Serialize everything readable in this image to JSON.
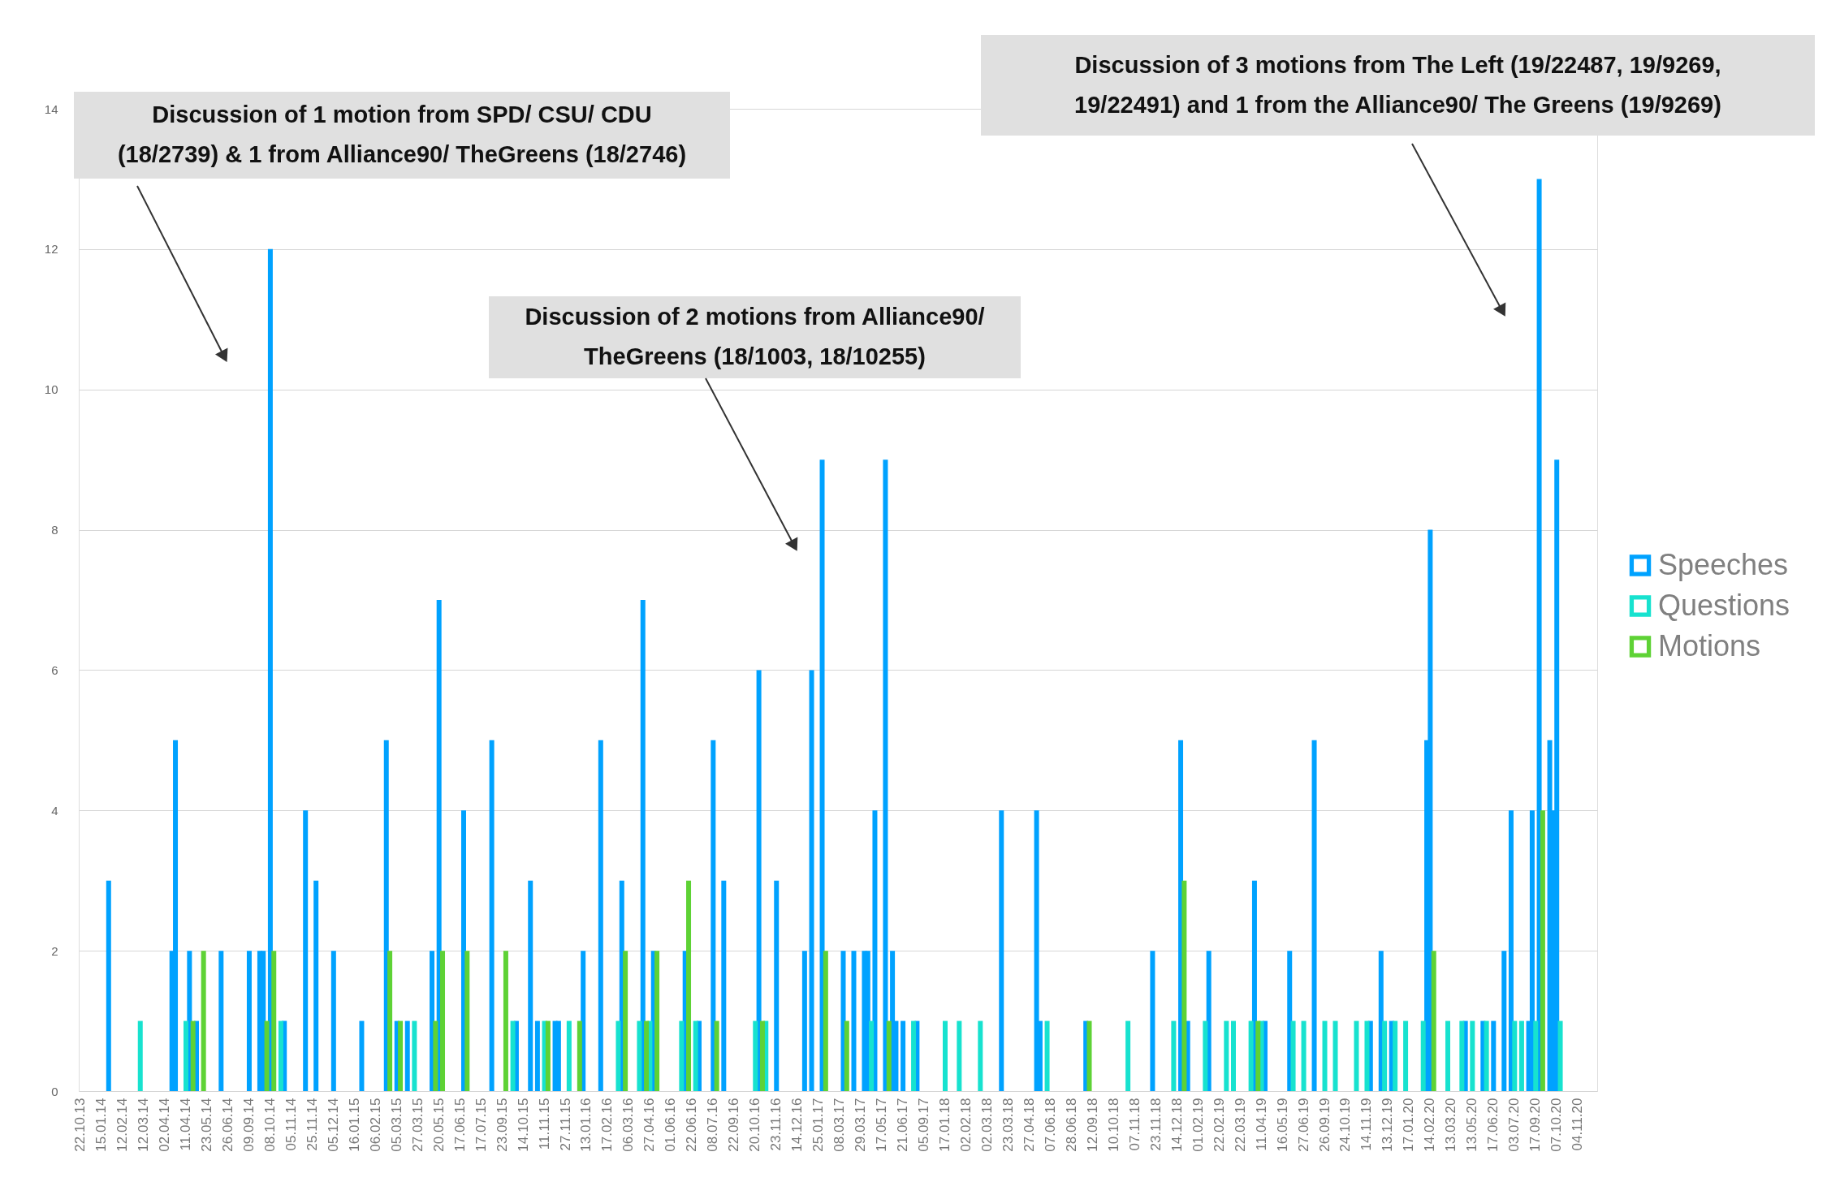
{
  "chart_data": {
    "type": "bar",
    "categories": [
      "22.10.13",
      null,
      null,
      null,
      null,
      null,
      "15.01.14",
      null,
      null,
      null,
      null,
      null,
      "12.02.14",
      null,
      null,
      null,
      null,
      null,
      "12.03.14",
      null,
      null,
      null,
      null,
      null,
      "02.04.14",
      null,
      null,
      null,
      null,
      null,
      "11.04.14",
      null,
      null,
      null,
      null,
      null,
      "23.05.14",
      null,
      null,
      null,
      null,
      null,
      "26.06.14",
      null,
      null,
      null,
      null,
      null,
      "09.09.14",
      null,
      null,
      null,
      null,
      null,
      "08.10.14",
      null,
      null,
      null,
      null,
      null,
      "05.11.14",
      null,
      null,
      null,
      null,
      null,
      "25.11.14",
      null,
      null,
      null,
      null,
      null,
      "05.12.14",
      null,
      null,
      null,
      null,
      null,
      "16.01.15",
      null,
      null,
      null,
      null,
      null,
      "06.02.15",
      null,
      null,
      null,
      null,
      null,
      "05.03.15",
      null,
      null,
      null,
      null,
      null,
      "27.03.15",
      null,
      null,
      null,
      null,
      null,
      "20.05.15",
      null,
      null,
      null,
      null,
      null,
      "17.06.15",
      null,
      null,
      null,
      null,
      null,
      "17.07.15",
      null,
      null,
      null,
      null,
      null,
      "23.09.15",
      null,
      null,
      null,
      null,
      null,
      "14.10.15",
      null,
      null,
      null,
      null,
      null,
      "11.11.15",
      null,
      null,
      null,
      null,
      null,
      "27.11.15",
      null,
      null,
      null,
      null,
      null,
      "13.01.16",
      null,
      null,
      null,
      null,
      null,
      "17.02.16",
      null,
      null,
      null,
      null,
      null,
      "06.03.16",
      null,
      null,
      null,
      null,
      null,
      "27.04.16",
      null,
      null,
      null,
      null,
      null,
      "01.06.16",
      null,
      null,
      null,
      null,
      null,
      "22.06.16",
      null,
      null,
      null,
      null,
      null,
      "08.07.16",
      null,
      null,
      null,
      null,
      null,
      "22.09.16",
      null,
      null,
      null,
      null,
      null,
      "20.10.16",
      null,
      null,
      null,
      null,
      null,
      "23.11.16",
      null,
      null,
      null,
      null,
      null,
      "14.12.16",
      null,
      null,
      null,
      null,
      null,
      "25.01.17",
      null,
      null,
      null,
      null,
      null,
      "08.03.17",
      null,
      null,
      null,
      null,
      null,
      "29.03.17",
      null,
      null,
      null,
      null,
      null,
      "17.05.17",
      null,
      null,
      null,
      null,
      null,
      "21.06.17",
      null,
      null,
      null,
      null,
      null,
      "05.09.17",
      null,
      null,
      null,
      null,
      null,
      "17.01.18",
      null,
      null,
      null,
      null,
      null,
      "02.02.18",
      null,
      null,
      null,
      null,
      null,
      "02.03.18",
      null,
      null,
      null,
      null,
      null,
      "23.03.18",
      null,
      null,
      null,
      null,
      null,
      "27.04.18",
      null,
      null,
      null,
      null,
      null,
      "07.06.18",
      null,
      null,
      null,
      null,
      null,
      "28.06.18",
      null,
      null,
      null,
      null,
      null,
      "12.09.18",
      null,
      null,
      null,
      null,
      null,
      "10.10.18",
      null,
      null,
      null,
      null,
      null,
      "07.11.18",
      null,
      null,
      null,
      null,
      null,
      "23.11.18",
      null,
      null,
      null,
      null,
      null,
      "14.12.18",
      null,
      null,
      null,
      null,
      null,
      "01.02.19",
      null,
      null,
      null,
      null,
      null,
      "22.02.19",
      null,
      null,
      null,
      null,
      null,
      "22.03.19",
      null,
      null,
      null,
      null,
      null,
      "11.04.19",
      null,
      null,
      null,
      null,
      null,
      "16.05.19",
      null,
      null,
      null,
      null,
      null,
      "27.06.19",
      null,
      null,
      null,
      null,
      null,
      "26.09.19",
      null,
      null,
      null,
      null,
      null,
      "24.10.19",
      null,
      null,
      null,
      null,
      null,
      "14.11.19",
      null,
      null,
      null,
      null,
      null,
      "13.12.19",
      null,
      null,
      null,
      null,
      null,
      "17.01.20",
      null,
      null,
      null,
      null,
      null,
      "14.02.20",
      null,
      null,
      null,
      null,
      null,
      "13.03.20",
      null,
      null,
      null,
      null,
      null,
      "13.05.20",
      null,
      null,
      null,
      null,
      null,
      "17.06.20",
      null,
      null,
      null,
      null,
      null,
      "03.07.20",
      null,
      null,
      null,
      null,
      null,
      "17.09.20",
      null,
      null,
      null,
      null,
      null,
      "07.10.20",
      null,
      null,
      null,
      null,
      null,
      "04.11.20",
      null,
      null,
      null,
      null,
      null
    ],
    "series": [
      {
        "name": "Speeches",
        "color": "#00a2ff",
        "values": [
          null,
          null,
          null,
          null,
          null,
          null,
          null,
          null,
          3,
          null,
          null,
          null,
          null,
          null,
          null,
          null,
          null,
          null,
          null,
          null,
          null,
          null,
          null,
          null,
          null,
          null,
          2,
          5,
          null,
          null,
          null,
          2,
          null,
          1,
          null,
          null,
          null,
          null,
          null,
          null,
          2,
          null,
          null,
          null,
          null,
          null,
          null,
          null,
          2,
          null,
          null,
          2,
          2,
          null,
          12,
          null,
          null,
          null,
          1,
          null,
          null,
          null,
          null,
          null,
          4,
          null,
          null,
          3,
          null,
          null,
          null,
          null,
          2,
          null,
          null,
          null,
          null,
          null,
          null,
          null,
          1,
          null,
          null,
          null,
          null,
          null,
          null,
          5,
          null,
          null,
          1,
          null,
          null,
          1,
          null,
          null,
          null,
          null,
          null,
          null,
          2,
          null,
          7,
          null,
          null,
          null,
          null,
          null,
          null,
          4,
          null,
          null,
          null,
          null,
          null,
          null,
          null,
          5,
          null,
          null,
          null,
          null,
          null,
          null,
          1,
          null,
          null,
          null,
          3,
          null,
          1,
          null,
          null,
          null,
          null,
          1,
          1,
          null,
          null,
          null,
          null,
          null,
          null,
          2,
          null,
          null,
          null,
          null,
          5,
          null,
          null,
          null,
          null,
          null,
          3,
          null,
          null,
          null,
          null,
          null,
          7,
          null,
          null,
          2,
          null,
          null,
          null,
          null,
          null,
          null,
          null,
          null,
          2,
          null,
          null,
          null,
          1,
          null,
          null,
          null,
          5,
          null,
          null,
          3,
          null,
          null,
          null,
          null,
          null,
          null,
          null,
          null,
          null,
          6,
          null,
          null,
          null,
          null,
          3,
          null,
          null,
          null,
          null,
          null,
          null,
          null,
          2,
          null,
          6,
          null,
          null,
          9,
          null,
          null,
          null,
          null,
          null,
          2,
          null,
          null,
          2,
          null,
          null,
          2,
          2,
          null,
          4,
          null,
          null,
          9,
          null,
          2,
          1,
          null,
          1,
          null,
          null,
          null,
          1,
          null,
          null,
          null,
          null,
          null,
          null,
          null,
          null,
          null,
          null,
          null,
          null,
          null,
          null,
          null,
          null,
          null,
          null,
          null,
          null,
          null,
          null,
          null,
          4,
          null,
          null,
          null,
          null,
          null,
          null,
          null,
          null,
          null,
          4,
          1,
          null,
          null,
          null,
          null,
          null,
          null,
          null,
          null,
          null,
          null,
          null,
          null,
          1,
          null,
          null,
          null,
          null,
          null,
          null,
          null,
          null,
          null,
          null,
          null,
          null,
          null,
          null,
          null,
          null,
          null,
          null,
          2,
          null,
          null,
          null,
          null,
          null,
          null,
          null,
          5,
          null,
          1,
          null,
          null,
          null,
          null,
          null,
          2,
          null,
          null,
          null,
          null,
          null,
          null,
          null,
          null,
          null,
          null,
          null,
          null,
          3,
          null,
          null,
          1,
          null,
          null,
          null,
          null,
          null,
          null,
          2,
          null,
          null,
          null,
          null,
          null,
          null,
          5,
          null,
          null,
          null,
          null,
          null,
          null,
          null,
          null,
          null,
          null,
          null,
          null,
          null,
          null,
          null,
          1,
          null,
          null,
          2,
          null,
          null,
          1,
          null,
          null,
          null,
          null,
          null,
          null,
          null,
          null,
          null,
          5,
          8,
          null,
          null,
          null,
          null,
          null,
          null,
          null,
          null,
          null,
          1,
          null,
          null,
          null,
          null,
          1,
          null,
          null,
          1,
          null,
          null,
          2,
          null,
          4,
          null,
          null,
          null,
          null,
          1,
          4,
          null,
          13,
          null,
          null,
          5,
          4,
          9,
          null,
          null,
          null,
          null,
          null,
          null,
          null,
          null,
          null,
          null,
          null
        ]
      },
      {
        "name": "Questions",
        "color": "#17e2cf",
        "values": [
          null,
          null,
          null,
          null,
          null,
          null,
          null,
          null,
          null,
          null,
          null,
          null,
          null,
          null,
          null,
          null,
          null,
          1,
          null,
          null,
          null,
          null,
          null,
          null,
          null,
          null,
          null,
          null,
          null,
          null,
          1,
          null,
          null,
          null,
          null,
          null,
          null,
          null,
          null,
          null,
          null,
          null,
          null,
          null,
          null,
          null,
          null,
          null,
          null,
          null,
          null,
          null,
          null,
          null,
          null,
          null,
          null,
          1,
          null,
          null,
          null,
          null,
          null,
          null,
          null,
          null,
          null,
          null,
          null,
          null,
          null,
          null,
          null,
          null,
          null,
          null,
          null,
          null,
          null,
          null,
          null,
          null,
          null,
          null,
          null,
          null,
          null,
          null,
          null,
          null,
          null,
          null,
          null,
          null,
          null,
          1,
          null,
          null,
          null,
          null,
          null,
          null,
          null,
          null,
          null,
          null,
          null,
          null,
          null,
          null,
          null,
          null,
          null,
          null,
          null,
          null,
          null,
          null,
          null,
          null,
          null,
          null,
          null,
          1,
          null,
          null,
          null,
          null,
          null,
          null,
          null,
          null,
          1,
          null,
          null,
          null,
          null,
          null,
          null,
          1,
          null,
          null,
          null,
          null,
          null,
          null,
          null,
          null,
          null,
          null,
          null,
          null,
          null,
          1,
          null,
          null,
          null,
          null,
          null,
          1,
          null,
          null,
          1,
          null,
          null,
          null,
          null,
          null,
          null,
          null,
          null,
          1,
          null,
          null,
          null,
          1,
          null,
          null,
          null,
          null,
          null,
          null,
          null,
          null,
          null,
          null,
          null,
          null,
          null,
          null,
          null,
          null,
          1,
          null,
          null,
          1,
          null,
          null,
          null,
          null,
          null,
          null,
          null,
          null,
          null,
          null,
          null,
          null,
          null,
          null,
          null,
          null,
          null,
          null,
          null,
          null,
          null,
          null,
          null,
          null,
          null,
          null,
          null,
          null,
          null,
          1,
          null,
          null,
          null,
          null,
          null,
          null,
          null,
          null,
          null,
          null,
          null,
          1,
          null,
          null,
          null,
          null,
          null,
          null,
          null,
          null,
          1,
          null,
          null,
          null,
          1,
          null,
          null,
          null,
          null,
          null,
          1,
          null,
          null,
          null,
          null,
          null,
          null,
          null,
          null,
          null,
          null,
          null,
          null,
          null,
          null,
          null,
          null,
          null,
          null,
          1,
          null,
          null,
          null,
          null,
          null,
          null,
          null,
          null,
          null,
          null,
          null,
          null,
          null,
          null,
          null,
          null,
          null,
          null,
          null,
          null,
          null,
          null,
          1,
          null,
          null,
          null,
          null,
          null,
          null,
          null,
          null,
          null,
          null,
          null,
          null,
          1,
          null,
          null,
          null,
          null,
          null,
          null,
          null,
          null,
          1,
          null,
          null,
          null,
          null,
          null,
          1,
          null,
          1,
          null,
          null,
          null,
          null,
          1,
          null,
          null,
          1,
          null,
          null,
          null,
          null,
          null,
          null,
          null,
          null,
          1,
          null,
          null,
          1,
          null,
          null,
          null,
          null,
          null,
          1,
          null,
          null,
          1,
          null,
          null,
          null,
          null,
          null,
          1,
          null,
          null,
          1,
          null,
          null,
          null,
          null,
          1,
          null,
          null,
          1,
          null,
          null,
          1,
          null,
          null,
          null,
          null,
          1,
          null,
          null,
          null,
          null,
          null,
          null,
          1,
          null,
          null,
          null,
          1,
          null,
          null,
          1,
          null,
          null,
          null,
          1,
          null,
          null,
          null,
          null,
          null,
          null,
          null,
          1,
          null,
          1,
          null,
          null,
          null,
          1,
          null,
          null,
          null,
          null,
          null,
          null,
          1,
          null,
          null,
          null,
          null,
          null,
          null,
          null,
          null,
          null,
          null
        ]
      },
      {
        "name": "Motions",
        "color": "#5ed235",
        "values": [
          null,
          null,
          null,
          null,
          null,
          null,
          null,
          null,
          null,
          null,
          null,
          null,
          null,
          null,
          null,
          null,
          null,
          null,
          null,
          null,
          null,
          null,
          null,
          null,
          null,
          null,
          null,
          null,
          null,
          null,
          null,
          null,
          1,
          null,
          null,
          2,
          null,
          null,
          null,
          null,
          null,
          null,
          null,
          null,
          null,
          null,
          null,
          null,
          null,
          null,
          null,
          null,
          null,
          1,
          null,
          2,
          null,
          null,
          null,
          null,
          null,
          null,
          null,
          null,
          null,
          null,
          null,
          null,
          null,
          null,
          null,
          null,
          null,
          null,
          null,
          null,
          null,
          null,
          null,
          null,
          null,
          null,
          null,
          null,
          null,
          null,
          null,
          null,
          2,
          null,
          null,
          1,
          null,
          null,
          null,
          null,
          null,
          null,
          null,
          null,
          null,
          1,
          null,
          2,
          null,
          null,
          null,
          null,
          null,
          null,
          2,
          null,
          null,
          null,
          null,
          null,
          null,
          null,
          null,
          null,
          null,
          2,
          null,
          null,
          null,
          null,
          null,
          null,
          null,
          null,
          null,
          null,
          null,
          1,
          null,
          null,
          null,
          null,
          null,
          null,
          null,
          null,
          1,
          null,
          null,
          null,
          null,
          null,
          null,
          null,
          null,
          null,
          null,
          null,
          null,
          2,
          null,
          null,
          null,
          null,
          null,
          1,
          null,
          null,
          2,
          null,
          null,
          null,
          null,
          null,
          null,
          null,
          null,
          3,
          null,
          null,
          null,
          null,
          null,
          null,
          null,
          1,
          null,
          null,
          null,
          null,
          null,
          null,
          null,
          null,
          null,
          null,
          null,
          null,
          1,
          null,
          null,
          null,
          null,
          null,
          null,
          null,
          null,
          null,
          null,
          null,
          null,
          null,
          null,
          null,
          null,
          null,
          2,
          null,
          null,
          null,
          null,
          null,
          1,
          null,
          null,
          null,
          null,
          null,
          null,
          null,
          null,
          null,
          null,
          null,
          1,
          null,
          null,
          null,
          null,
          null,
          null,
          null,
          null,
          null,
          null,
          null,
          null,
          null,
          null,
          null,
          null,
          null,
          null,
          null,
          null,
          null,
          null,
          null,
          null,
          null,
          null,
          null,
          null,
          null,
          null,
          null,
          null,
          null,
          null,
          null,
          null,
          null,
          null,
          null,
          null,
          null,
          null,
          null,
          null,
          null,
          null,
          null,
          null,
          null,
          null,
          null,
          null,
          null,
          null,
          null,
          null,
          1,
          null,
          null,
          null,
          null,
          null,
          null,
          null,
          null,
          null,
          null,
          null,
          null,
          null,
          null,
          null,
          null,
          null,
          null,
          null,
          null,
          null,
          null,
          null,
          null,
          null,
          null,
          3,
          null,
          null,
          null,
          null,
          null,
          null,
          null,
          null,
          null,
          null,
          null,
          null,
          null,
          null,
          null,
          null,
          null,
          null,
          null,
          null,
          1,
          null,
          null,
          null,
          null,
          null,
          null,
          null,
          null,
          null,
          null,
          null,
          null,
          null,
          null,
          null,
          null,
          null,
          null,
          null,
          null,
          null,
          null,
          null,
          null,
          null,
          null,
          null,
          null,
          null,
          null,
          null,
          null,
          null,
          null,
          null,
          null,
          null,
          null,
          null,
          null,
          null,
          null,
          null,
          null,
          null,
          null,
          null,
          null,
          null,
          2,
          null,
          null,
          null,
          null,
          null,
          null,
          null,
          null,
          null,
          null,
          null,
          null,
          null,
          null,
          null,
          null,
          null,
          null,
          null,
          null,
          null,
          null,
          null,
          null,
          null,
          null,
          null,
          null,
          null,
          null,
          4,
          null,
          null,
          null,
          null,
          null,
          null,
          null,
          null,
          null,
          null,
          null,
          null,
          null,
          null,
          null
        ]
      }
    ],
    "ylim": [
      0,
      14
    ],
    "yticks": [
      0,
      2,
      4,
      6,
      8,
      10,
      12,
      14
    ],
    "grid": "y",
    "legend": "right",
    "annotations": [
      "Discussion of 1 motion from SPD/ CSU/ CDU (18/2739) &  1 from Alliance90/ TheGreens (18/2746)",
      "Discussion of 2 motions from Alliance90/ TheGreens (18/1003, 18/10255)",
      "Discussion of 3 motions from The Left (19/22487, 19/9269, 19/22491) and 1 from the Alliance90/ The Greens (19/9269)"
    ]
  }
}
